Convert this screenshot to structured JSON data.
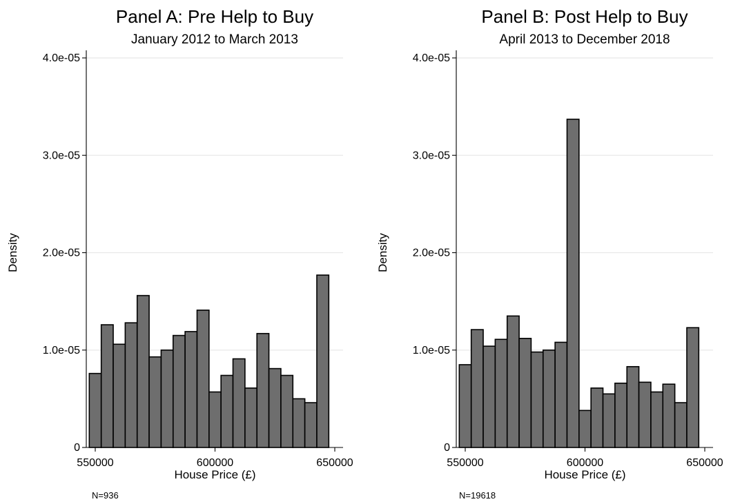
{
  "chart_data": [
    {
      "type": "bar",
      "subtype": "histogram",
      "title": "Panel A: Pre Help to Buy",
      "subtitle": "January 2012 to March 2013",
      "xlabel": "House Price (£)",
      "ylabel": "Density",
      "xlim": [
        550000,
        650000
      ],
      "ylim": [
        0,
        4e-05
      ],
      "xticks": [
        550000,
        600000,
        650000
      ],
      "xtick_labels": [
        "550000",
        "600000",
        "650000"
      ],
      "yticks": [
        0,
        1e-05,
        2e-05,
        3e-05,
        4e-05
      ],
      "ytick_labels": [
        "0",
        "1.0e-05",
        "2.0e-05",
        "3.0e-05",
        "4.0e-05"
      ],
      "grid": true,
      "bin_width": 5000,
      "bin_starts": [
        547500,
        552500,
        557500,
        562500,
        567500,
        572500,
        577500,
        582500,
        587500,
        592500,
        597500,
        602500,
        607500,
        612500,
        617500,
        622500,
        627500,
        632500,
        637500,
        642500
      ],
      "values": [
        7.6e-06,
        1.26e-05,
        1.06e-05,
        1.28e-05,
        1.56e-05,
        9.3e-06,
        1e-05,
        1.15e-05,
        1.19e-05,
        1.41e-05,
        5.7e-06,
        7.4e-06,
        9.1e-06,
        6.1e-06,
        1.17e-05,
        8.1e-06,
        7.4e-06,
        5e-06,
        4.6e-06,
        1.77e-05
      ],
      "note": "N=936"
    },
    {
      "type": "bar",
      "subtype": "histogram",
      "title": "Panel B: Post Help to Buy",
      "subtitle": "April 2013 to December 2018",
      "xlabel": "House Price (£)",
      "ylabel": "Density",
      "xlim": [
        550000,
        650000
      ],
      "ylim": [
        0,
        4e-05
      ],
      "xticks": [
        550000,
        600000,
        650000
      ],
      "xtick_labels": [
        "550000",
        "600000",
        "650000"
      ],
      "yticks": [
        0,
        1e-05,
        2e-05,
        3e-05,
        4e-05
      ],
      "ytick_labels": [
        "0",
        "1.0e-05",
        "2.0e-05",
        "3.0e-05",
        "4.0e-05"
      ],
      "grid": true,
      "bin_width": 5000,
      "bin_starts": [
        547500,
        552500,
        557500,
        562500,
        567500,
        572500,
        577500,
        582500,
        587500,
        592500,
        597500,
        602500,
        607500,
        612500,
        617500,
        622500,
        627500,
        632500,
        637500,
        642500
      ],
      "values": [
        8.5e-06,
        1.21e-05,
        1.04e-05,
        1.11e-05,
        1.35e-05,
        1.12e-05,
        9.8e-06,
        1e-05,
        1.08e-05,
        3.37e-05,
        3.8e-06,
        6.1e-06,
        5.5e-06,
        6.6e-06,
        8.3e-06,
        6.7e-06,
        5.7e-06,
        6.5e-06,
        4.6e-06,
        1.23e-05
      ],
      "note": "N=19618"
    }
  ]
}
